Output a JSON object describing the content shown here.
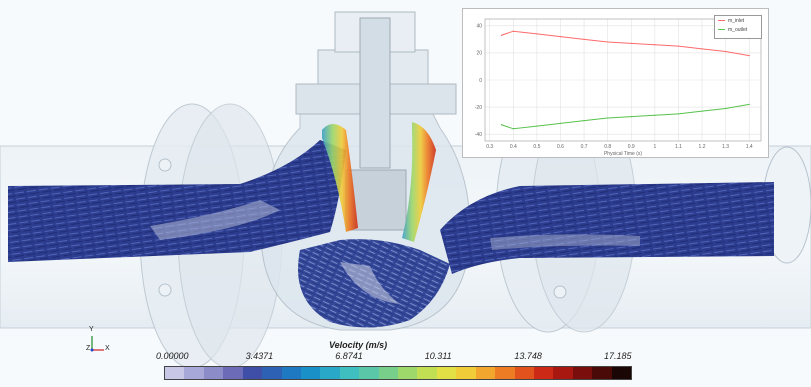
{
  "chart_data": {
    "type": "line",
    "x": [
      0.35,
      0.4,
      0.5,
      0.6,
      0.7,
      0.8,
      0.9,
      1.0,
      1.1,
      1.2,
      1.3,
      1.4
    ],
    "series": [
      {
        "name": "m_inlet",
        "values": [
          33,
          36,
          34,
          32,
          30,
          28,
          27,
          26,
          25,
          23,
          21,
          18
        ]
      },
      {
        "name": "m_outlet",
        "values": [
          -33,
          -36,
          -34,
          -32,
          -30,
          -28,
          -27,
          -26,
          -25,
          -23,
          -21,
          -18
        ]
      }
    ],
    "colors": [
      "#ff6a6a",
      "#56c24a"
    ],
    "xlabel": "Physical Time (s)",
    "ylabel": "",
    "x_ticks": [
      "0.3",
      "0.4",
      "0.5",
      "0.6",
      "0.7",
      "0.8",
      "0.9",
      "1",
      "1.1",
      "1.2",
      "1.3",
      "1.4"
    ],
    "y_ticks": [
      "40",
      "20",
      "0",
      "-20",
      "-40"
    ],
    "xlim": [
      0.28,
      1.45
    ],
    "ylim": [
      -45,
      45
    ],
    "grid": true,
    "legend": "top-right"
  },
  "colorbar": {
    "title": "Velocity (m/s)",
    "ticks": [
      "0.00000",
      "3.4371",
      "6.8741",
      "10.311",
      "13.748",
      "17.185"
    ],
    "colors": [
      "#c8c8e6",
      "#a8a8d8",
      "#8c8cc8",
      "#6b6bb8",
      "#3f4fa8",
      "#2d61b4",
      "#1e78c2",
      "#1990c8",
      "#2aa8c8",
      "#3fbfbf",
      "#5ac8a8",
      "#78cf8a",
      "#9ed86a",
      "#c2de52",
      "#e2e044",
      "#f0cc38",
      "#f2a62e",
      "#ee7c24",
      "#e2521c",
      "#cc2a16",
      "#a81810",
      "#7a0e0c",
      "#4a0a08",
      "#1a0604"
    ]
  },
  "triad": {
    "y": "Y",
    "z": "Z",
    "x": "X"
  }
}
